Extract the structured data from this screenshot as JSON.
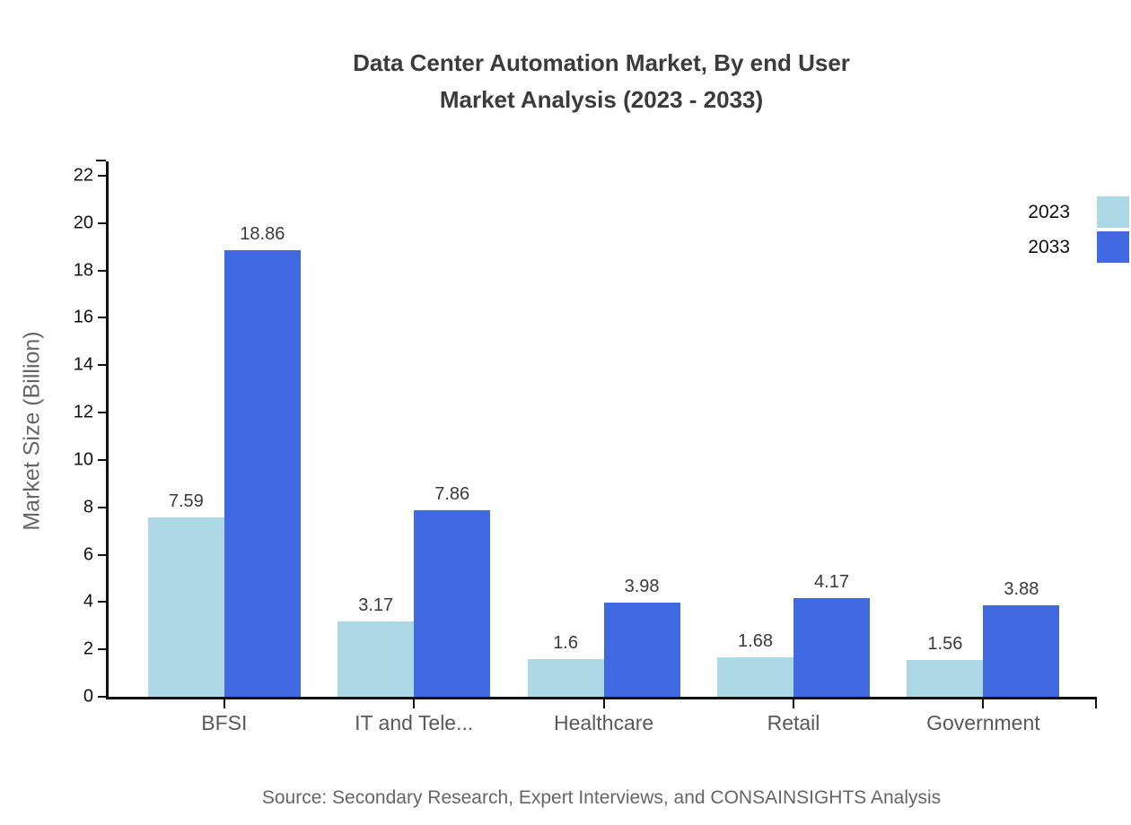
{
  "title": {
    "line1": "Data Center Automation Market, By end User",
    "line2": "Market Analysis (2023 - 2033)"
  },
  "source": "Source: Secondary Research, Expert Interviews, and CONSAINSIGHTS Analysis",
  "chart_data": {
    "type": "bar",
    "categories": [
      "BFSI",
      "IT and Tele...",
      "Healthcare",
      "Retail",
      "Government"
    ],
    "series": [
      {
        "name": "2023",
        "color": "#ADD8E6",
        "values": [
          7.59,
          3.17,
          1.6,
          1.68,
          1.56
        ]
      },
      {
        "name": "2033",
        "color": "#4169E1",
        "values": [
          18.86,
          7.86,
          3.98,
          4.17,
          3.88
        ]
      }
    ],
    "title": "Data Center Automation Market, By end User Market Analysis (2023 - 2033)",
    "xlabel": "",
    "ylabel": "Market Size (Billion)",
    "ylim": [
      0,
      22.6
    ],
    "yticks": [
      0,
      2,
      4,
      6,
      8,
      10,
      12,
      14,
      16,
      18,
      20,
      22
    ],
    "grid": false,
    "legend_position": "top-right",
    "value_labels": true
  }
}
